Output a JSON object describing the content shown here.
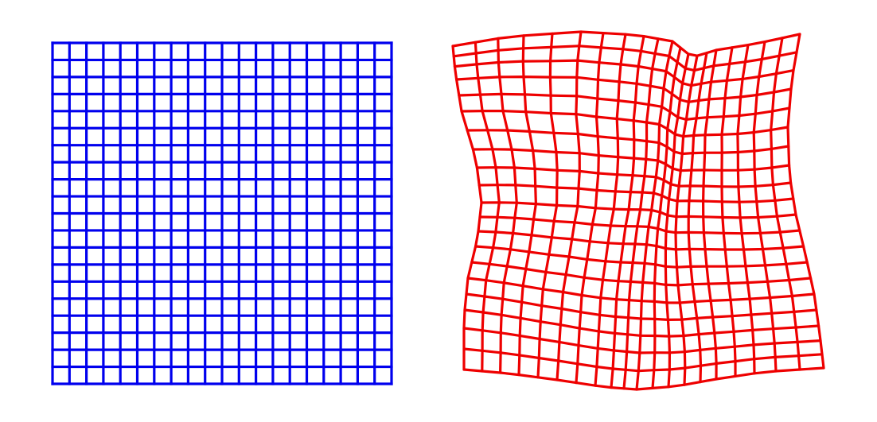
{
  "figure": {
    "panels": [
      {
        "name": "regular-grid",
        "color": "#0000ee",
        "rows": 20,
        "cols": 20,
        "deformed": false
      },
      {
        "name": "warped-grid",
        "color": "#ee0000",
        "rows": 20,
        "cols": 20,
        "deformed": true
      }
    ]
  }
}
